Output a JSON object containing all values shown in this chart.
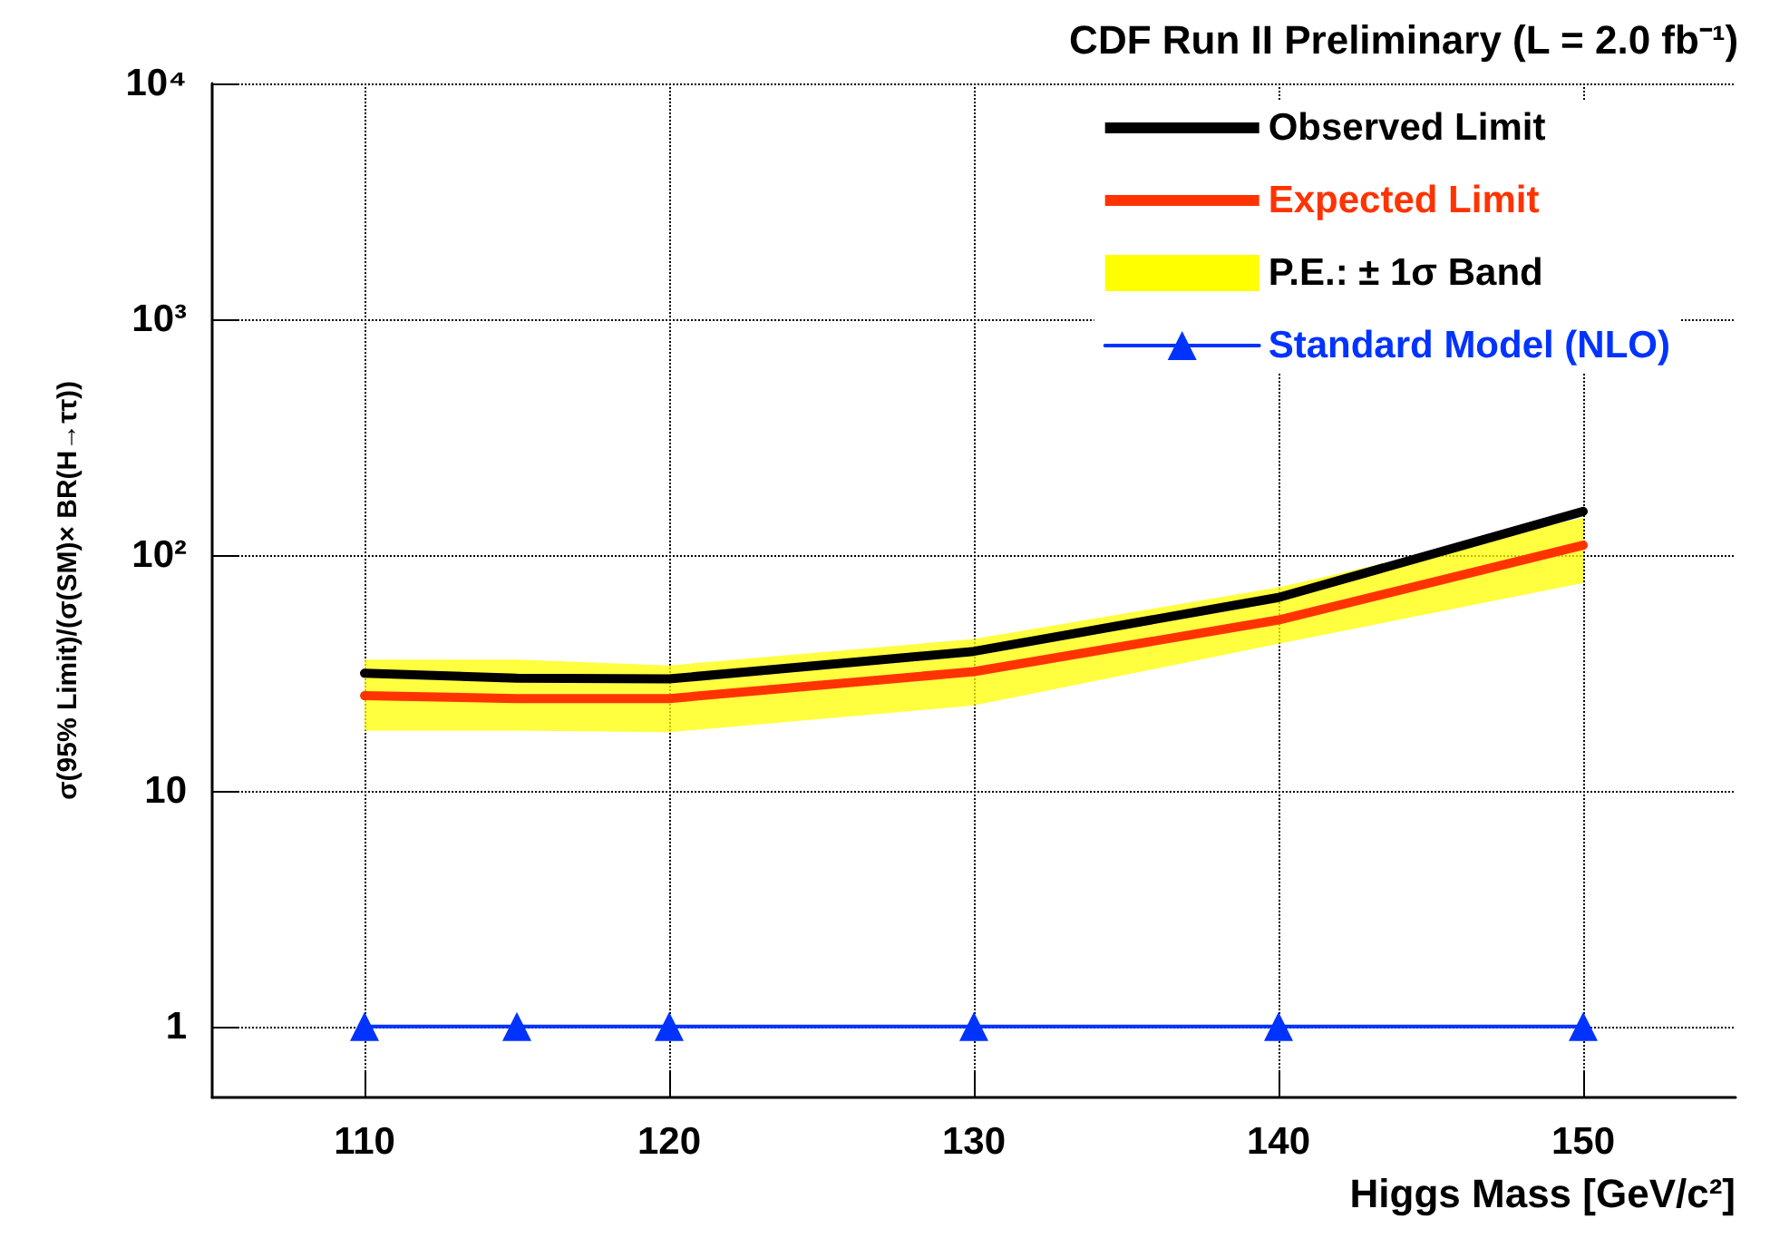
{
  "chart_data": {
    "type": "line",
    "title": "CDF Run II Preliminary (L = 2.0 fb⁻¹)",
    "xlabel": "Higgs Mass [GeV/c²]",
    "ylabel": "σ(95% Limit)/(σ(SM)× BR(H→ττ))",
    "x": [
      110,
      115,
      120,
      130,
      140,
      150
    ],
    "series": [
      {
        "name": "Observed Limit",
        "color": "#000000",
        "marker": "none",
        "values": [
          31.5,
          30,
          29.8,
          39,
          66,
          153
        ]
      },
      {
        "name": "Expected Limit",
        "color": "#ff3300",
        "marker": "none",
        "values": [
          25.3,
          24.6,
          24.6,
          32,
          53,
          110
        ],
        "lower": [
          18,
          18,
          17.7,
          23,
          42,
          76
        ],
        "upper": [
          36,
          36,
          34,
          44,
          73,
          144
        ]
      },
      {
        "name": "P.E.: ± 1σ Band",
        "type": "area",
        "color": "#ffff00",
        "values": [
          null,
          null,
          null,
          null,
          null,
          null
        ]
      },
      {
        "name": "Standard Model (NLO)",
        "color": "#0033ff",
        "marker": "triangle",
        "values": [
          1,
          1,
          1,
          1,
          1,
          1
        ]
      }
    ],
    "xlim": [
      105,
      155
    ],
    "xticks": [
      110,
      120,
      130,
      140,
      150
    ],
    "ylim": [
      0.5,
      10000
    ],
    "yticks": [
      1,
      10,
      {
        "value": 100,
        "label": "10²"
      },
      {
        "value": 1000,
        "label": "10³"
      },
      {
        "value": 10000,
        "label": "10⁴"
      }
    ],
    "log": "y",
    "grid": true,
    "legend": "top right",
    "line_style": "solid"
  }
}
